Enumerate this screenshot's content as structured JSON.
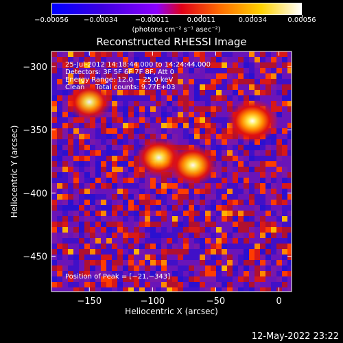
{
  "chart_data": {
    "type": "heatmap",
    "title": "Reconstructed RHESSI Image",
    "xlabel": "Heliocentric X (arcsec)",
    "ylabel": "Heliocentric Y (arcsec)",
    "xlim": [
      -180,
      10
    ],
    "ylim": [
      -478,
      -288
    ],
    "xticks": [
      -150,
      -100,
      -50,
      0
    ],
    "yticks": [
      -300,
      -350,
      -400,
      -450
    ],
    "xtick_labels": [
      "−150",
      "−100",
      "−50",
      "0"
    ],
    "ytick_labels": [
      "−300",
      "−350",
      "−400",
      "−450"
    ],
    "colorbar": {
      "range": [
        -0.00056,
        0.00056
      ],
      "ticks": [
        -0.00056,
        -0.00034,
        -0.00011,
        0.00011,
        0.00034,
        0.00056
      ],
      "tick_labels": [
        "−0.00056",
        "−0.00034",
        "−0.00011",
        "0.00011",
        "0.00034",
        "0.00056"
      ],
      "unit_label": "(photons cm⁻² s⁻¹ asec⁻²)",
      "colormap": [
        "#0000ff",
        "#5a00c8",
        "#8b00ff",
        "#ff0000",
        "#ff8c00",
        "#ffd200",
        "#ffffff"
      ]
    },
    "sources": [
      {
        "x": -150,
        "y": -328,
        "peak": 0.0004
      },
      {
        "x": -95,
        "y": -372,
        "peak": 0.00045
      },
      {
        "x": -68,
        "y": -378,
        "peak": 0.0005
      },
      {
        "x": -21,
        "y": -343,
        "peak": 0.00056
      }
    ],
    "annotations": {
      "time": "25-Jul-2012 14:18:44.000 to 14:24:44.000",
      "detectors": "Detectors: 3F 5F 6F 7F 8F, Att 0",
      "energy": "Energy Range: 12.0 − 25.0 keV",
      "clean": "Clean     Total counts: 9.77E+03",
      "peak": "Position of Peak = [−21,−343]"
    }
  },
  "footer": {
    "timestamp": "12-May-2022 23:22"
  }
}
